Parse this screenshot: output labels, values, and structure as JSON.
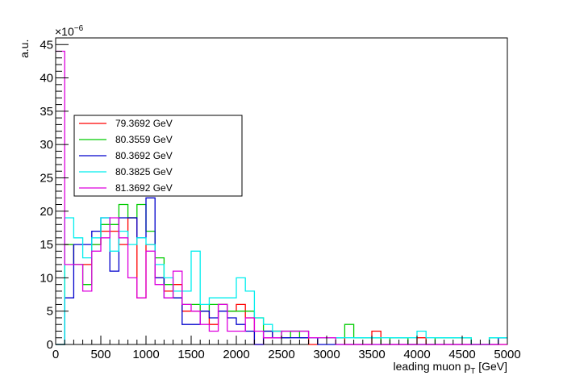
{
  "chart_data": {
    "type": "histogram",
    "title": "",
    "xlabel_main": "leading muon p",
    "xlabel_sub": "T",
    "xlabel_unit": "[GeV]",
    "ylabel": "a.u.",
    "y_exponent_base": "×10",
    "y_exponent_power": "−6",
    "xlim": [
      0,
      5000
    ],
    "ylim": [
      0,
      46
    ],
    "x_ticks": [
      0,
      500,
      1000,
      1500,
      2000,
      2500,
      3000,
      3500,
      4000,
      4500,
      5000
    ],
    "y_ticks": [
      0,
      5,
      10,
      15,
      20,
      25,
      30,
      35,
      40,
      45
    ],
    "bin_width": 100,
    "legend_position": "upper-left",
    "grid": false,
    "series": [
      {
        "name": "79.3692 GeV",
        "color": "#ff0000",
        "values": [
          0,
          15,
          12,
          12,
          15,
          17,
          17,
          15,
          19,
          7,
          15,
          10,
          8,
          9,
          5,
          5,
          5,
          3,
          6,
          5,
          6,
          4,
          0,
          1,
          2,
          2,
          2,
          2,
          0,
          1,
          1,
          1,
          0,
          0,
          0,
          2,
          0,
          0,
          0,
          0,
          1,
          0,
          0,
          0,
          0,
          0,
          0,
          0,
          0,
          0
        ]
      },
      {
        "name": "80.3559 GeV",
        "color": "#00cc00",
        "values": [
          0,
          15,
          12,
          9,
          15,
          18,
          18,
          21,
          19,
          21,
          17,
          13,
          9,
          7,
          6,
          6,
          5,
          6,
          6,
          5,
          5,
          5,
          4,
          2,
          2,
          1,
          2,
          1,
          1,
          1,
          1,
          1,
          3,
          1,
          1,
          1,
          0,
          1,
          1,
          0,
          0,
          0,
          1,
          1,
          1,
          1,
          0,
          0,
          1,
          1
        ]
      },
      {
        "name": "80.3692 GeV",
        "color": "#0000cc",
        "values": [
          0,
          7,
          15,
          15,
          17,
          19,
          11,
          19,
          19,
          16,
          22,
          10,
          7,
          7,
          3,
          3,
          5,
          4,
          5,
          4,
          3,
          2,
          0,
          2,
          1,
          1,
          1,
          1,
          1,
          0,
          0,
          0,
          0,
          0,
          0,
          0,
          0,
          0,
          0,
          0,
          0,
          0,
          0,
          0,
          0,
          0,
          0,
          0,
          0,
          1
        ]
      },
      {
        "name": "80.3825 GeV",
        "color": "#00eeee",
        "values": [
          0,
          19,
          16,
          13,
          16,
          19,
          14,
          17,
          15,
          16,
          15,
          12,
          10,
          8,
          8,
          14,
          6,
          7,
          7,
          7,
          10,
          8,
          4,
          3,
          2,
          2,
          2,
          2,
          1,
          1,
          1,
          1,
          1,
          1,
          1,
          1,
          1,
          1,
          1,
          1,
          2,
          1,
          1,
          1,
          1,
          1,
          0,
          0,
          1,
          1
        ]
      },
      {
        "name": "81.3692 GeV",
        "color": "#dd00dd",
        "values": [
          44,
          12,
          12,
          8,
          14,
          16,
          19,
          16,
          10,
          7,
          14,
          9,
          7,
          11,
          6,
          5,
          3,
          2,
          6,
          2,
          2,
          4,
          2,
          1,
          1,
          2,
          2,
          2,
          1,
          1,
          1,
          0,
          0,
          0,
          0,
          0,
          0,
          0,
          0,
          0,
          0,
          0,
          0,
          0,
          0,
          0,
          0,
          0,
          0,
          0
        ]
      }
    ]
  }
}
